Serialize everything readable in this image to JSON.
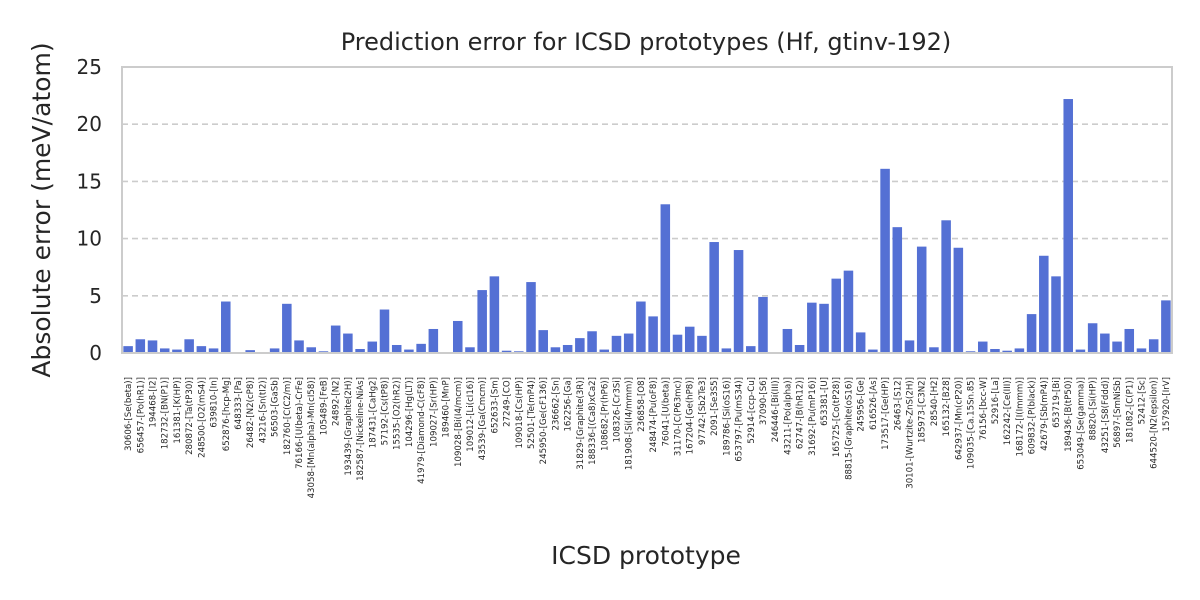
{
  "chart_data": {
    "type": "bar",
    "title": "Prediction error for ICSD prototypes (Hf, gtinv-192)",
    "xlabel": "ICSD prototype",
    "ylabel": "Absolute error (meV/atom)",
    "ylim": [
      0,
      25
    ],
    "yticks": [
      0,
      5,
      10,
      15,
      20,
      25
    ],
    "grid": "horizontal-dashed",
    "bar_color": "#5470d4",
    "categories": [
      "30606-[Se(beta)]",
      "656457-[Po(hR1)]",
      "194468-[I2]",
      "182732-[BN(P1)]",
      "161381-[K(HP)]",
      "280872-[Ta(tP30)]",
      "248500-[O2(mS4)]",
      "639810-[In]",
      "652876-[hcp-Mg]",
      "648333-[Pa]",
      "26482-[N2(cP8)]",
      "43216-[Sn(tI2)]",
      "56503-[GaSb]",
      "182760-[C(C2/m)]",
      "76166-[U(beta)-CrFe]",
      "43058-[Mn(alpha)-Mn(cI58)]",
      "105489-[FeB]",
      "24892-[N2]",
      "193439-[Graphite(2H)]",
      "182587-[Nickeline-NiAs]",
      "187431-[CaHg2]",
      "57192-[Cs(tP8)]",
      "15535-[O2(hR2)]",
      "104296-[Hg(LT)]",
      "41979-[Diamond-C(cF8)]",
      "109027-[Sr(HP)]",
      "189460-[MnP]",
      "109028-[Bi(I4/mcm)]",
      "109012-[Li(cI16)]",
      "43539-[Ga(Cmcm)]",
      "652633-[Sm]",
      "27249-[CO]",
      "109018-[Cs(HP)]",
      "52501-[Te(mP4)]",
      "245950-[Ge(cF136)]",
      "236662-[Sn]",
      "162256-[Ga]",
      "31829-[Graphite(3R)]",
      "188336-[(Ca8)xCa2]",
      "108682-[Pr(hP6)]",
      "108326-[Cr3Si]",
      "181908-[Si(I4/mmm)]",
      "236858-[O8]",
      "248474-[Pu(oF8)]",
      "76041-[U(beta)]",
      "31170-[C(P63mc)]",
      "167204-[Ge(hP8)]",
      "97742-[Sb2Te3]",
      "2091-[Se3S5]",
      "189786-[Si(oS16)]",
      "653797-[Pu(mS34)]",
      "52914-[ccp-Cu]",
      "37090-[S6]",
      "246446-[Bi(III)]",
      "43211-[Po(alpha)]",
      "62747-[B(hR12)]",
      "31692-[Pu(mP16)]",
      "653381-[U]",
      "165725-[Co(tP28)]",
      "88815-[Graphite(oS16)]",
      "245956-[Ge]",
      "616526-[As]",
      "173517-[Ge(HP)]",
      "26463-[S12]",
      "30101-[Wurtzite-ZnS(2H)]",
      "185973-[C3N2]",
      "28540-[H2]",
      "165132-[B28]",
      "642937-[Mn(cP20)]",
      "109035-[Ca.15Sn.85]",
      "76156-[bcc-W]",
      "52916-[La]",
      "162242-[Ce(III)]",
      "168172-[I(Immm)]",
      "609832-[P(black)]",
      "42679-[Sb(mP4)]",
      "653719-[Bi]",
      "189436-[B(tP50)]",
      "653049-[Se(gamma)]",
      "88820-[Si(HP)]",
      "43251-[S8(Fddd)]",
      "56897-[SmNiSb]",
      "181082-[C(P1)]",
      "52412-[Sc]",
      "644520-[N2(epsilon)]",
      "157920-[IrV]"
    ],
    "values": [
      0.6,
      1.2,
      1.1,
      0.4,
      0.3,
      1.2,
      0.6,
      0.4,
      4.5,
      0.05,
      0.25,
      0.05,
      0.4,
      4.3,
      1.1,
      0.5,
      0.15,
      2.4,
      1.7,
      0.35,
      1.0,
      3.8,
      0.7,
      0.3,
      0.8,
      2.1,
      0.05,
      2.8,
      0.5,
      5.5,
      6.7,
      0.2,
      0.15,
      6.2,
      2.0,
      0.5,
      0.7,
      1.3,
      1.9,
      0.3,
      1.5,
      1.7,
      4.5,
      3.2,
      13.0,
      1.6,
      2.3,
      1.5,
      9.7,
      0.4,
      9.0,
      0.6,
      4.9,
      0.05,
      2.1,
      0.7,
      4.4,
      4.3,
      6.5,
      7.2,
      1.8,
      0.3,
      16.1,
      11.0,
      1.1,
      9.3,
      0.5,
      11.6,
      9.2,
      0.15,
      1.0,
      0.35,
      0.2,
      0.4,
      3.4,
      8.5,
      6.7,
      22.2,
      0.3,
      2.6,
      1.7,
      1.0,
      2.1,
      0.4,
      1.2,
      4.6
    ]
  }
}
